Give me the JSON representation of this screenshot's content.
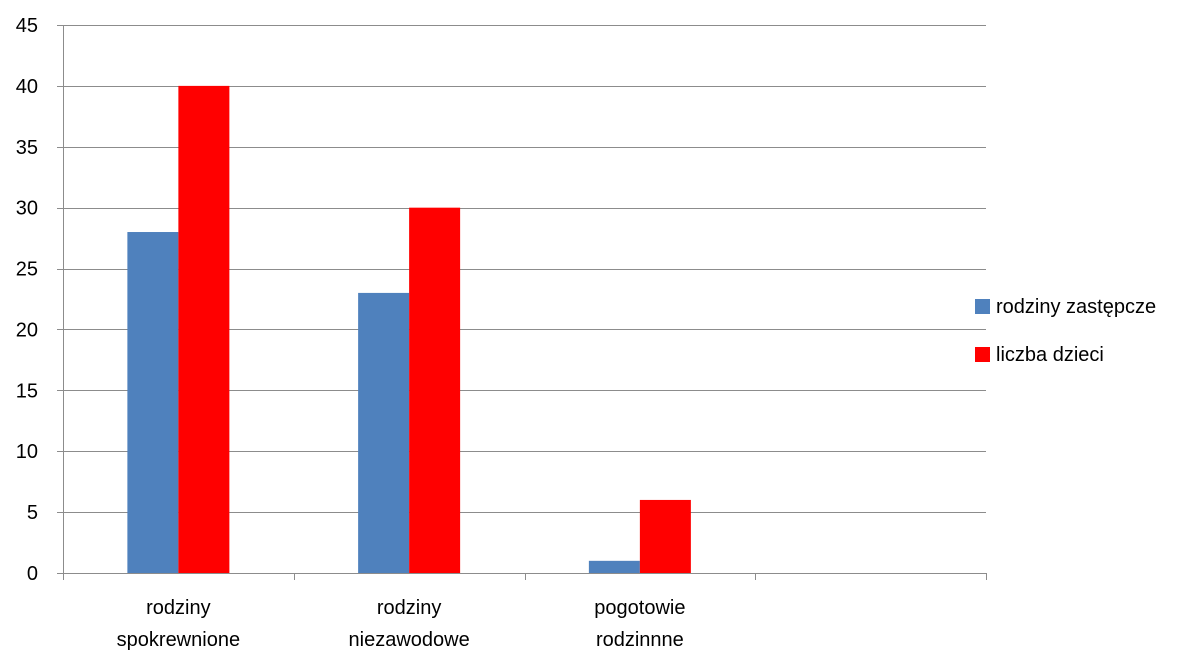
{
  "chart_data": {
    "type": "bar",
    "title": "",
    "xlabel": "",
    "ylabel": "",
    "categories": [
      [
        "rodziny",
        "spokrewnione"
      ],
      [
        "rodziny",
        "niezawodowe"
      ],
      [
        "pogotowie",
        "rodzinnne"
      ],
      [
        "",
        ""
      ]
    ],
    "series": [
      {
        "name": "rodziny zastępcze",
        "color": "#4f81bd",
        "values": [
          28,
          23,
          1,
          null
        ]
      },
      {
        "name": "liczba dzieci",
        "color": "#ff0000",
        "values": [
          40,
          30,
          6,
          null
        ]
      }
    ],
    "ylim": [
      0,
      45
    ],
    "yticks": [
      0,
      5,
      10,
      15,
      20,
      25,
      30,
      35,
      40,
      45
    ],
    "grid": true,
    "legend_position": "right"
  }
}
